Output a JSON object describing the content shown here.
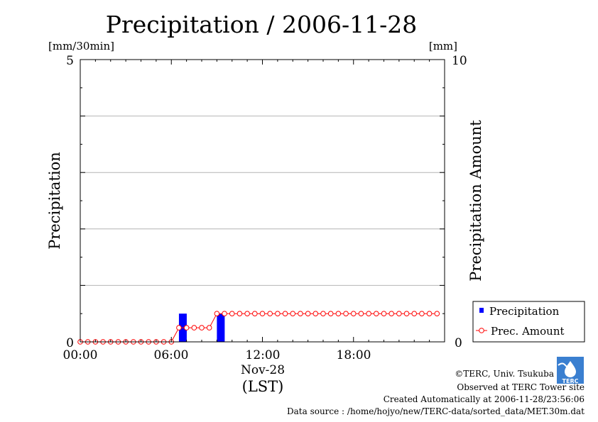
{
  "chart_data": {
    "type": "bar+line",
    "title": "Precipitation / 2006-11-28",
    "left_axis": {
      "label": "Precipitation",
      "unit": "[mm/30min]",
      "ylim": [
        0,
        5
      ],
      "tick_labels": [
        "0",
        "5"
      ],
      "gridlines": [
        1,
        2,
        3,
        4
      ]
    },
    "right_axis": {
      "label": "Precipitation Amount",
      "unit": "[mm]",
      "ylim": [
        0,
        10
      ],
      "tick_labels": [
        "0",
        "10"
      ]
    },
    "x_axis": {
      "range_hours": [
        0,
        24
      ],
      "tick_hours": [
        0,
        6,
        12,
        18
      ],
      "tick_labels": [
        "00:00",
        "06:00",
        "12:00",
        "18:00"
      ],
      "date_label": "Nov-28",
      "timezone_label": "(LST)"
    },
    "legend": {
      "placement": "bottom-right",
      "entries": [
        "Precipitation",
        "Prec. Amount"
      ]
    },
    "series": [
      {
        "name": "Precipitation",
        "type": "bar",
        "color": "#0000ff",
        "x_hours": [
          0,
          0.5,
          1,
          1.5,
          2,
          2.5,
          3,
          3.5,
          4,
          4.5,
          5,
          5.5,
          6,
          6.5,
          7,
          7.5,
          8,
          8.5,
          9,
          9.5,
          10,
          10.5,
          11,
          11.5,
          12,
          12.5,
          13,
          13.5,
          14,
          14.5,
          15,
          15.5,
          16,
          16.5,
          17,
          17.5,
          18,
          18.5,
          19,
          19.5,
          20,
          20.5,
          21,
          21.5,
          22,
          22.5,
          23,
          23.5
        ],
        "values": [
          0,
          0,
          0,
          0,
          0,
          0,
          0,
          0,
          0,
          0,
          0,
          0,
          0,
          0.5,
          0,
          0,
          0,
          0,
          0.5,
          0,
          0,
          0,
          0,
          0,
          0,
          0,
          0,
          0,
          0,
          0,
          0,
          0,
          0,
          0,
          0,
          0,
          0,
          0,
          0,
          0,
          0,
          0,
          0,
          0,
          0,
          0,
          0,
          0
        ]
      },
      {
        "name": "Prec. Amount",
        "type": "line",
        "color": "#ff0000",
        "x_hours": [
          0,
          0.5,
          1,
          1.5,
          2,
          2.5,
          3,
          3.5,
          4,
          4.5,
          5,
          5.5,
          6,
          6.5,
          7,
          7.5,
          8,
          8.5,
          9,
          9.5,
          10,
          10.5,
          11,
          11.5,
          12,
          12.5,
          13,
          13.5,
          14,
          14.5,
          15,
          15.5,
          16,
          16.5,
          17,
          17.5,
          18,
          18.5,
          19,
          19.5,
          20,
          20.5,
          21,
          21.5,
          22,
          22.5,
          23,
          23.5
        ],
        "values": [
          0,
          0,
          0,
          0,
          0,
          0,
          0,
          0,
          0,
          0,
          0,
          0,
          0,
          0.5,
          0.5,
          0.5,
          0.5,
          0.5,
          1,
          1,
          1,
          1,
          1,
          1,
          1,
          1,
          1,
          1,
          1,
          1,
          1,
          1,
          1,
          1,
          1,
          1,
          1,
          1,
          1,
          1,
          1,
          1,
          1,
          1,
          1,
          1,
          1,
          1
        ]
      }
    ]
  },
  "footer": {
    "logo_text": "TERC",
    "copyright": "©TERC, Univ. Tsukuba",
    "observed": "Observed at TERC Tower site",
    "created": "Created Automatically at 2006-11-28/23:56:06",
    "source": "Data source : /home/hojyo/new/TERC-data/sorted_data/MET.30m.dat"
  }
}
